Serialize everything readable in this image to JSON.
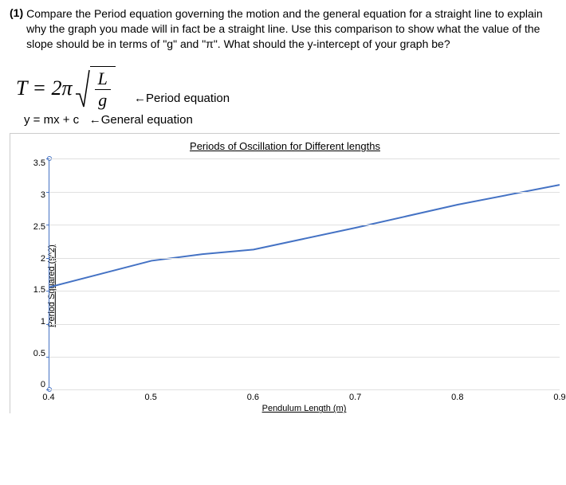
{
  "question": {
    "number": "(1)",
    "text": "Compare the Period equation governing the motion and the general equation for a straight line to explain why the graph you made will in fact be a straight line. Use this comparison to show what the value of the slope should be in terms of \"g\" and \"π\". What should the y-intercept of your graph be?"
  },
  "equations": {
    "period_lhs": "T = 2π",
    "sqrt_sym": "√",
    "frac_top": "L",
    "frac_bot": "g",
    "period_label": "←Period equation",
    "general": "y = mx + c",
    "general_label": "←General equation"
  },
  "chart": {
    "title": "Periods of Oscillation for Different lengths ",
    "ylabel": "Period Squared (s^2) ",
    "xlabel": "Pendulum Length (m) ",
    "ylim": [
      0,
      3.5
    ],
    "yticks": [
      "3.5",
      "3",
      "2.5",
      "2",
      "1.5",
      "1",
      "0.5",
      "0"
    ],
    "xlim": [
      0.4,
      0.9
    ],
    "xticks": [
      {
        "v": 0.4,
        "label": "0.4"
      },
      {
        "v": 0.5,
        "label": "0.5"
      },
      {
        "v": 0.6,
        "label": "0.6"
      },
      {
        "v": 0.7,
        "label": "0.7"
      },
      {
        "v": 0.8,
        "label": "0.8"
      },
      {
        "v": 0.9,
        "label": "0.9"
      }
    ],
    "line_color": "#4472c4",
    "line_width": 2,
    "grid_color": "#e0e0e0",
    "points": [
      {
        "x": 0.4,
        "y": 1.55
      },
      {
        "x": 0.5,
        "y": 1.95
      },
      {
        "x": 0.55,
        "y": 2.05
      },
      {
        "x": 0.6,
        "y": 2.12
      },
      {
        "x": 0.7,
        "y": 2.45
      },
      {
        "x": 0.8,
        "y": 2.8
      },
      {
        "x": 0.9,
        "y": 3.1
      }
    ]
  }
}
